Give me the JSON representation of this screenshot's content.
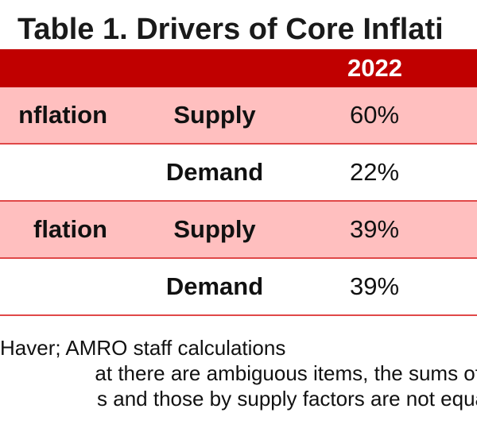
{
  "title": "Table 1. Drivers of Core Inflati",
  "header": {
    "year": "2022"
  },
  "rows": [
    {
      "category": "nflation",
      "factor": "Supply",
      "value": "60%"
    },
    {
      "category": "",
      "factor": "Demand",
      "value": "22%"
    },
    {
      "category": "flation",
      "factor": "Supply",
      "value": "39%"
    },
    {
      "category": "",
      "factor": "Demand",
      "value": "39%"
    }
  ],
  "notes": [
    "Haver; AMRO staff calculations",
    "at there are ambiguous items, the sums of",
    "s and those by supply factors are not equa"
  ],
  "colors": {
    "header": "#c00000",
    "pink_row": "#ffbfbf",
    "border": "#e04848"
  }
}
